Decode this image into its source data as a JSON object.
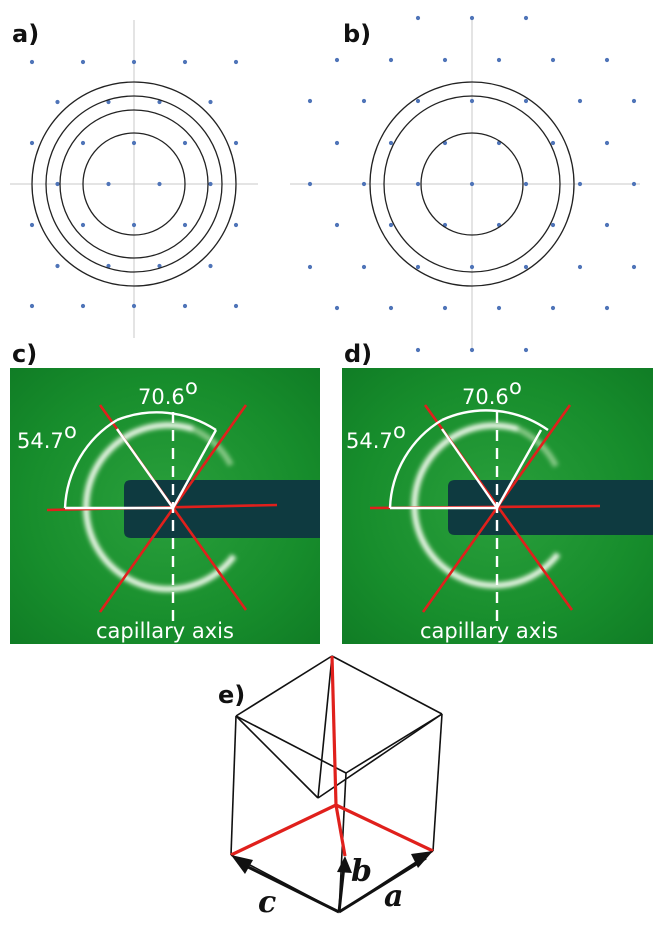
{
  "panels": {
    "a": {
      "label": "a)"
    },
    "b": {
      "label": "b)"
    },
    "c": {
      "label": "c)",
      "angle_small": "54.7",
      "angle_large": "70.6",
      "degree_mark": "o",
      "axis_label": "capillary axis"
    },
    "d": {
      "label": "d)",
      "angle_small": "54.7",
      "angle_large": "70.6",
      "degree_mark": "o",
      "axis_label": "capillary axis"
    },
    "e": {
      "label": "e)",
      "vector_a": "a",
      "vector_b": "b",
      "vector_c": "c"
    }
  },
  "colors": {
    "dots": "#4f74b8",
    "rings": "#222222",
    "guide": "#c8c8c8",
    "saxs_bg": "#148a2a",
    "capillary": "#0e3a40",
    "red_lines": "#e0201c",
    "white_lines": "#ffffff",
    "cube_edges": "#111111",
    "cube_highlight": "#e0201c"
  }
}
